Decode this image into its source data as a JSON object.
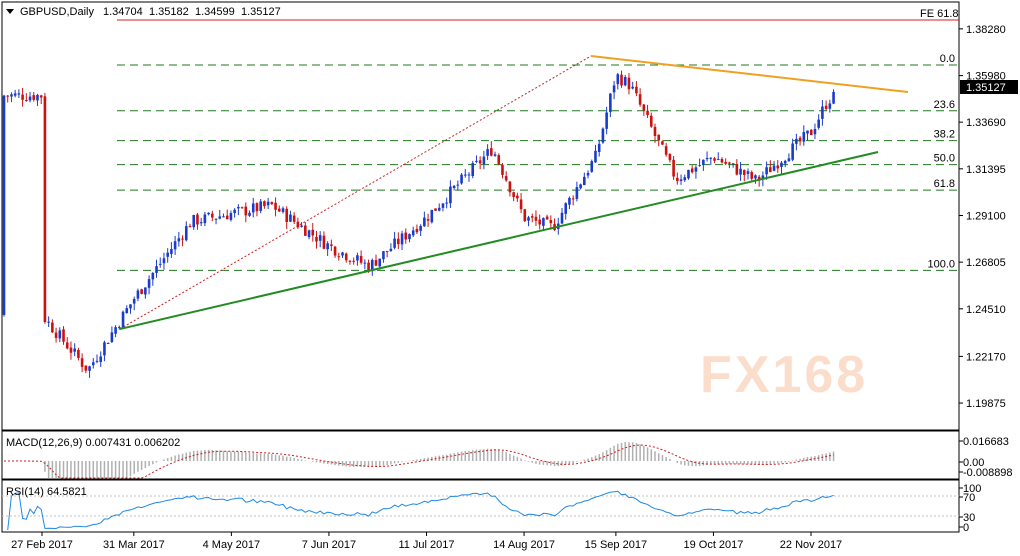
{
  "header": {
    "symbol": "GBPUSD,Daily",
    "open": "1.34704",
    "high": "1.35182",
    "low": "1.34599",
    "close": "1.35127",
    "fe_label": "FE 61.8"
  },
  "price_axis": {
    "ticks": [
      "1.38280",
      "1.35980",
      "1.33690",
      "1.31395",
      "1.29100",
      "1.26805",
      "1.24510",
      "1.22170",
      "1.19875"
    ],
    "current_price": "1.35127"
  },
  "fibonacci": {
    "levels": [
      {
        "label": "0.0",
        "price": 1.365
      },
      {
        "label": "23.6",
        "price": 1.3425
      },
      {
        "label": "38.2",
        "price": 1.3278
      },
      {
        "label": "50.0",
        "price": 1.316
      },
      {
        "label": "61.8",
        "price": 1.3035
      },
      {
        "label": "100.0",
        "price": 1.264
      }
    ]
  },
  "watermark": "FX168",
  "macd": {
    "label": "MACD(12,26,9) 0.007431 0.006202",
    "ticks": [
      "0.016683",
      "0.00",
      "-0.008898"
    ]
  },
  "rsi": {
    "label": "RSI(14) 64.5821",
    "ticks": [
      "100",
      "70",
      "30",
      "0"
    ]
  },
  "time_axis": {
    "labels": [
      "27 Feb 2017",
      "31 Mar 2017",
      "4 May 2017",
      "7 Jun 2017",
      "11 Jul 2017",
      "14 Aug 2017",
      "15 Sep 2017",
      "19 Oct 2017",
      "22 Nov 2017"
    ]
  },
  "colors": {
    "bull": "#1a3ccc",
    "bear": "#cc1111",
    "fib": "#1f7a1f",
    "support": "#228b22",
    "resistance": "#f0a020",
    "fe_line": "#cc2222",
    "rsi": "#1e88e5",
    "macd_signal": "#cc2222",
    "macd_hist": "#b0b0b0"
  },
  "chart_data": {
    "type": "candlestick",
    "title": "GBPUSD,Daily",
    "ylim": [
      1.1855,
      1.396
    ],
    "x_range": [
      "27 Feb 2017",
      "early Dec 2017"
    ],
    "anchors": [
      {
        "date": "27 Feb 2017",
        "price": 1.242
      },
      {
        "date": "15 Mar 2017",
        "price": 1.215
      },
      {
        "date": "31 Mar 2017",
        "price": 1.25
      },
      {
        "date": "20 Apr 2017",
        "price": 1.288
      },
      {
        "date": "4 May 2017",
        "price": 1.292
      },
      {
        "date": "18 May 2017",
        "price": 1.296
      },
      {
        "date": "7 Jun 2017",
        "price": 1.276
      },
      {
        "date": "21 Jun 2017",
        "price": 1.266
      },
      {
        "date": "11 Jul 2017",
        "price": 1.29
      },
      {
        "date": "3 Aug 2017",
        "price": 1.324
      },
      {
        "date": "14 Aug 2017",
        "price": 1.29
      },
      {
        "date": "24 Aug 2017",
        "price": 1.285
      },
      {
        "date": "8 Sep 2017",
        "price": 1.32
      },
      {
        "date": "15 Sep 2017",
        "price": 1.36
      },
      {
        "date": "20 Sep 2017",
        "price": 1.355
      },
      {
        "date": "6 Oct 2017",
        "price": 1.309
      },
      {
        "date": "19 Oct 2017",
        "price": 1.32
      },
      {
        "date": "3 Nov 2017",
        "price": 1.308
      },
      {
        "date": "22 Nov 2017",
        "price": 1.332
      },
      {
        "date": "28 Nov 2017",
        "price": 1.348
      },
      {
        "date": "1 Dec 2017",
        "price": 1.35
      }
    ],
    "trendlines": [
      {
        "name": "support",
        "from": {
          "date": "31 Mar 2017",
          "price": 1.264
        },
        "to": {
          "date": "early Dec 2017",
          "price": 1.332
        }
      },
      {
        "name": "resistance",
        "from": {
          "date": "15 Sep 2017",
          "price": 1.365
        },
        "to": {
          "date": "early Dec 2017",
          "price": 1.356
        }
      }
    ]
  }
}
